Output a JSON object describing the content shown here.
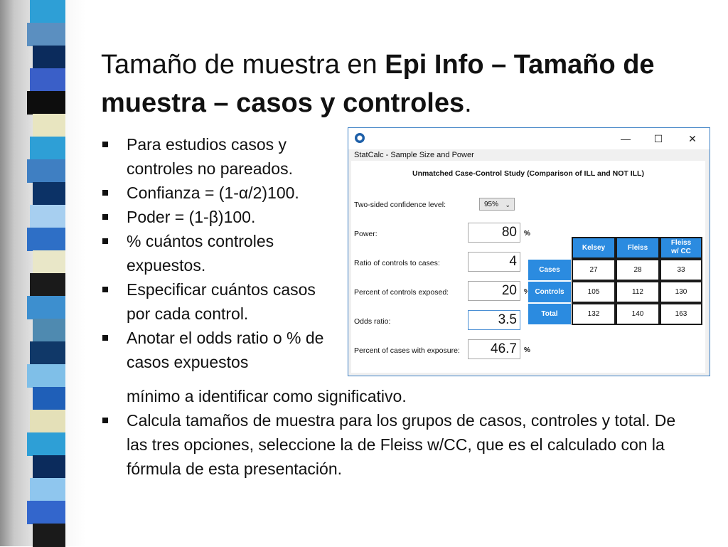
{
  "slide": {
    "title_normal": "Tamaño de muestra en ",
    "title_bold": "Epi Info – Tamaño de muestra – casos y controles",
    "title_end": ".",
    "bullets_left": [
      "Para estudios casos y controles no pareados.",
      "Confianza = (1-α/2)100.",
      "Poder = (1-β)100.",
      "% cuántos controles expuestos.",
      "Especificar cuántos casos por cada control.",
      "Anotar el odds ratio o % de casos expuestos"
    ],
    "bullet_continuation": "mínimo a identificar como significativo.",
    "bullet_last": "Calcula tamaños de muestra para los grupos de casos, controles y total. De las tres opciones, seleccione la de Fleiss w/CC, que es el calculado con la fórmula de esta presentación."
  },
  "window": {
    "menu_title": "StatCalc - Sample Size and Power",
    "minimize": "—",
    "maximize": "☐",
    "close": "✕",
    "study_title": "Unmatched Case-Control Study (Comparison of ILL and NOT ILL)",
    "confidence_label": "Two-sided confidence level:",
    "confidence_value": "95%",
    "power_label": "Power:",
    "power_value": "80",
    "ratio_label": "Ratio of controls to cases:",
    "ratio_value": "4",
    "pct_controls_label": "Percent of controls exposed:",
    "pct_controls_value": "20",
    "odds_label": "Odds ratio:",
    "odds_value": "3.5",
    "pct_cases_label": "Percent of cases with exposure:",
    "pct_cases_value": "46.7",
    "percent_sign": "%"
  },
  "results": {
    "columns": [
      "Kelsey",
      "Fleiss",
      "Fleiss w/ CC"
    ],
    "rows": [
      {
        "label": "Cases",
        "values": [
          "27",
          "28",
          "33"
        ]
      },
      {
        "label": "Controls",
        "values": [
          "105",
          "112",
          "130"
        ]
      },
      {
        "label": "Total",
        "values": [
          "132",
          "140",
          "163"
        ]
      }
    ]
  },
  "colors": {
    "accent": "#2b8be0",
    "strip_blocks": [
      "#2e9fd6",
      "#5b8fc0",
      "#0b2b5c",
      "#3a5fc8",
      "#0d0d0d",
      "#e8e5c0",
      "#2e9fd6",
      "#3f7fc2",
      "#0c3266",
      "#a7cff0",
      "#2e6fc6",
      "#e9e7c8",
      "#1a1a1a",
      "#3d8fcf",
      "#4f8ab0",
      "#103868",
      "#7fbfe8",
      "#1f5fb8",
      "#e4e0b8",
      "#2e9fd6",
      "#0b2b5c",
      "#8fc6ee",
      "#3366cc",
      "#1a1a1a"
    ]
  }
}
